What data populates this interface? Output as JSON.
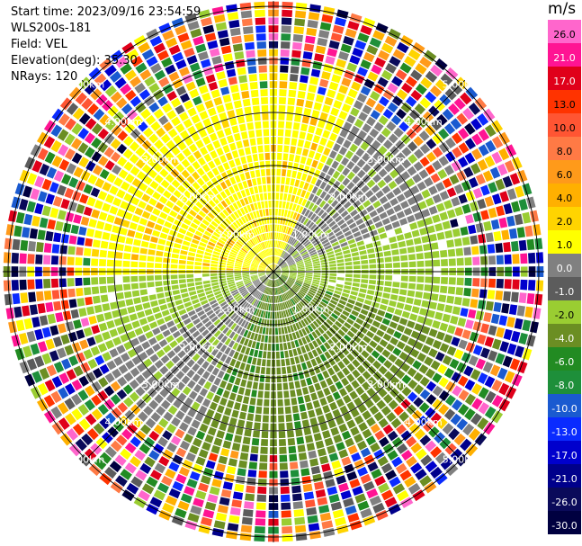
{
  "header": {
    "start_time": "Start time: 2023/09/16 23:54:59",
    "instrument": "WLS200s-181",
    "field": "Field: VEL",
    "elevation": "Elevation(deg): 35.30",
    "nrays": "NRays: 120"
  },
  "colorbar": {
    "unit": "m/s",
    "ticks": [
      "26.0",
      "21.0",
      "17.0",
      "13.0",
      "10.0",
      "8.0",
      "6.0",
      "4.0",
      "2.0",
      "1.0",
      "0.0",
      "-1.0",
      "-2.0",
      "-4.0",
      "-6.0",
      "-8.0",
      "-10.0",
      "-13.0",
      "-17.0",
      "-21.0",
      "-26.0",
      "-30.0"
    ],
    "colors": [
      "#ff66cc",
      "#ff1493",
      "#e0001a",
      "#ff3300",
      "#ff5533",
      "#ff7a45",
      "#ff9a1a",
      "#ffb000",
      "#ffd400",
      "#ffff00",
      "#808080",
      "#5c5c5c",
      "#9acd32",
      "#6b8e23",
      "#228b22",
      "#1e8f3a",
      "#1a5ad0",
      "#0a2bff",
      "#0000cd",
      "#00008b",
      "#0a0a5a",
      "#000040"
    ]
  },
  "chart_data": {
    "type": "ppi",
    "title": "Start time: 2023/09/16 23:54:59",
    "field": "VEL",
    "units": "m/s",
    "nrays": 120,
    "range_rings_km": [
      1.0,
      2.0,
      3.0,
      4.0,
      5.0
    ],
    "range_ring_labels": [
      "1.00km",
      "2.00km",
      "3.00km",
      "4.00km",
      "5.00km"
    ],
    "max_range_km": 5.1,
    "velocity_range": [
      -30.0,
      26.0
    ],
    "regions": [
      {
        "sector": "north-west to north",
        "range_km": [
          0,
          3.0
        ],
        "velocity_ms": 2.0,
        "color_name": "yellow"
      },
      {
        "sector": "north-east",
        "range_km": [
          0.5,
          3.5
        ],
        "velocity_ms": 0.0,
        "color_name": "gray"
      },
      {
        "sector": "east",
        "range_km": [
          0.5,
          3.5
        ],
        "velocity_ms": -1.5,
        "color_name": "yellow-green"
      },
      {
        "sector": "south-east to south",
        "range_km": [
          0,
          3.5
        ],
        "velocity_ms": -4.0,
        "color_name": "olive"
      },
      {
        "sector": "south-west",
        "range_km": [
          0.5,
          3.0
        ],
        "velocity_ms": 0.0,
        "color_name": "gray"
      },
      {
        "sector": "outer ring",
        "range_km": [
          3.5,
          5.1
        ],
        "velocity_ms": null,
        "color_name": "noisy multicolor"
      }
    ]
  }
}
